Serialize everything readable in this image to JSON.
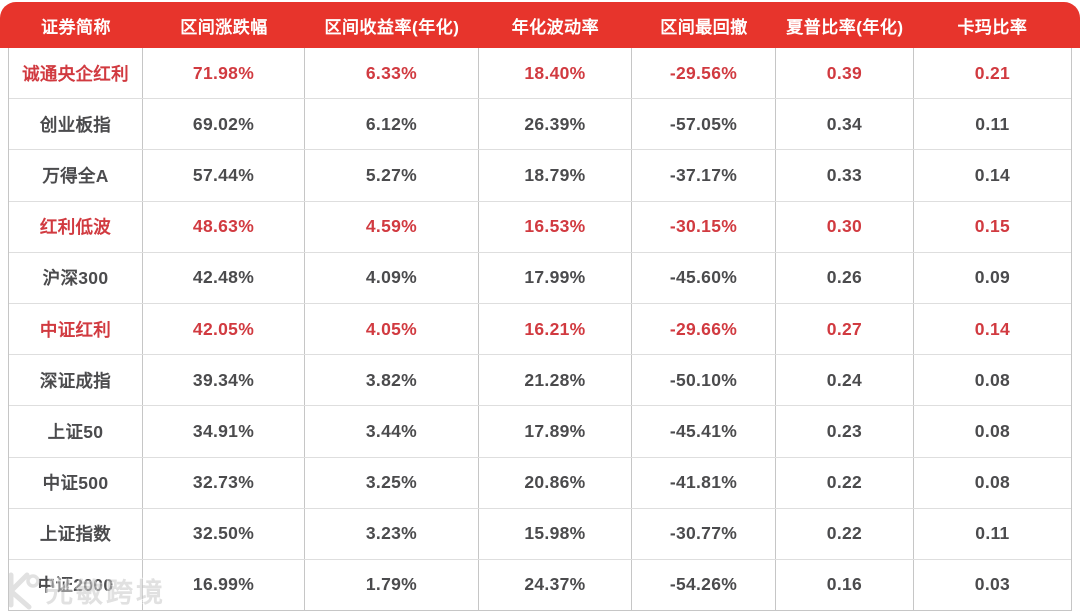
{
  "chart_data": {
    "type": "table",
    "columns": [
      {
        "key": "name",
        "label": "证券简称"
      },
      {
        "key": "change",
        "label": "区间涨跌幅"
      },
      {
        "key": "annual_return",
        "label": "区间收益率(年化)"
      },
      {
        "key": "volatility",
        "label": "年化波动率"
      },
      {
        "key": "max_drawdown",
        "label": "区间最回撤"
      },
      {
        "key": "sharpe",
        "label": "夏普比率(年化)"
      },
      {
        "key": "calmar",
        "label": "卡玛比率"
      }
    ],
    "rows": [
      {
        "name": "诚通央企红利",
        "change": "71.98%",
        "annual_return": "6.33%",
        "volatility": "18.40%",
        "max_drawdown": "-29.56%",
        "sharpe": "0.39",
        "calmar": "0.21",
        "highlight": true
      },
      {
        "name": "创业板指",
        "change": "69.02%",
        "annual_return": "6.12%",
        "volatility": "26.39%",
        "max_drawdown": "-57.05%",
        "sharpe": "0.34",
        "calmar": "0.11",
        "highlight": false
      },
      {
        "name": "万得全A",
        "change": "57.44%",
        "annual_return": "5.27%",
        "volatility": "18.79%",
        "max_drawdown": "-37.17%",
        "sharpe": "0.33",
        "calmar": "0.14",
        "highlight": false
      },
      {
        "name": "红利低波",
        "change": "48.63%",
        "annual_return": "4.59%",
        "volatility": "16.53%",
        "max_drawdown": "-30.15%",
        "sharpe": "0.30",
        "calmar": "0.15",
        "highlight": true
      },
      {
        "name": "沪深300",
        "change": "42.48%",
        "annual_return": "4.09%",
        "volatility": "17.99%",
        "max_drawdown": "-45.60%",
        "sharpe": "0.26",
        "calmar": "0.09",
        "highlight": false
      },
      {
        "name": "中证红利",
        "change": "42.05%",
        "annual_return": "4.05%",
        "volatility": "16.21%",
        "max_drawdown": "-29.66%",
        "sharpe": "0.27",
        "calmar": "0.14",
        "highlight": true
      },
      {
        "name": "深证成指",
        "change": "39.34%",
        "annual_return": "3.82%",
        "volatility": "21.28%",
        "max_drawdown": "-50.10%",
        "sharpe": "0.24",
        "calmar": "0.08",
        "highlight": false
      },
      {
        "name": "上证50",
        "change": "34.91%",
        "annual_return": "3.44%",
        "volatility": "17.89%",
        "max_drawdown": "-45.41%",
        "sharpe": "0.23",
        "calmar": "0.08",
        "highlight": false
      },
      {
        "name": "中证500",
        "change": "32.73%",
        "annual_return": "3.25%",
        "volatility": "20.86%",
        "max_drawdown": "-41.81%",
        "sharpe": "0.22",
        "calmar": "0.08",
        "highlight": false
      },
      {
        "name": "上证指数",
        "change": "32.50%",
        "annual_return": "3.23%",
        "volatility": "15.98%",
        "max_drawdown": "-30.77%",
        "sharpe": "0.22",
        "calmar": "0.11",
        "highlight": false
      },
      {
        "name": "中证2000",
        "change": "16.99%",
        "annual_return": "1.79%",
        "volatility": "24.37%",
        "max_drawdown": "-54.26%",
        "sharpe": "0.16",
        "calmar": "0.03",
        "highlight": false
      }
    ],
    "layout_hints": {
      "header_position": "top",
      "grid": true,
      "highlight_style": "red-text-rows"
    }
  },
  "colors": {
    "header_bg": "#E7342C",
    "header_text": "#FFFFFF",
    "highlight_text": "#D13A40",
    "body_text": "#4B4B4D",
    "grid_line": "#C6C6C6",
    "row_divider": "#DEDEDE"
  },
  "watermark": {
    "text": "光敏跨境"
  }
}
